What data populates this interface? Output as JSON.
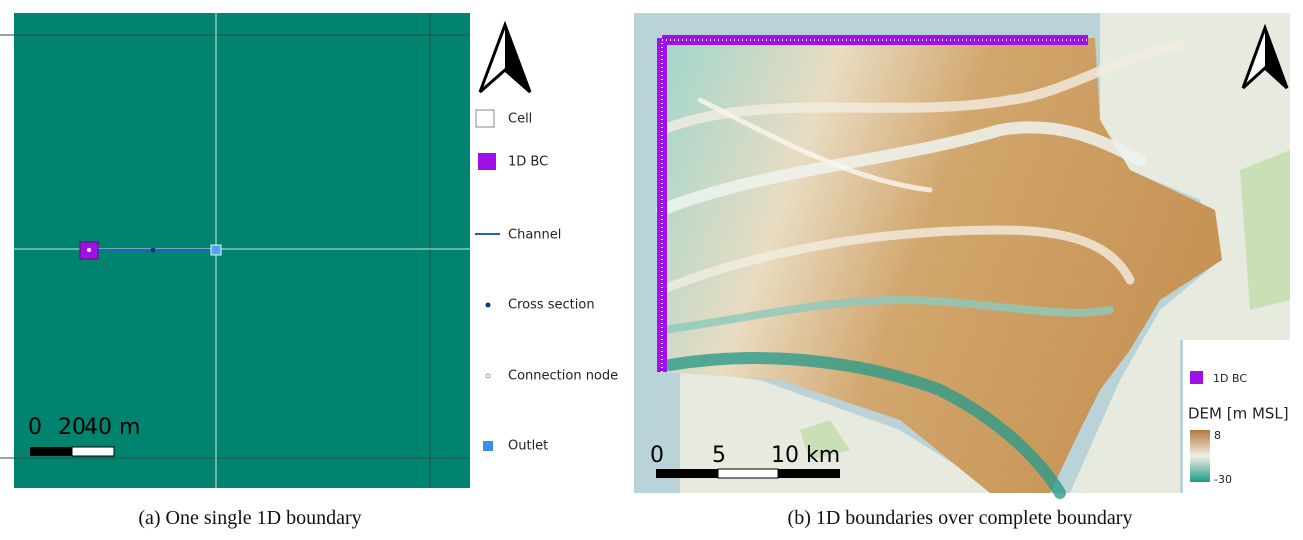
{
  "panel_a": {
    "scale_labels": [
      "0",
      "20",
      "40 m"
    ],
    "legend": [
      "Cell",
      "1D BC",
      "Channel",
      "Cross section",
      "Connection node",
      "Outlet"
    ],
    "caption": "(a) One single 1D boundary"
  },
  "panel_b": {
    "scale_labels": [
      "0",
      "5",
      "10 km"
    ],
    "legend": [
      "1D BC"
    ],
    "colorbar": {
      "title": "DEM [m MSL]",
      "max": "8",
      "min": "-30"
    },
    "caption": "(b) 1D boundaries over complete boundary"
  }
}
